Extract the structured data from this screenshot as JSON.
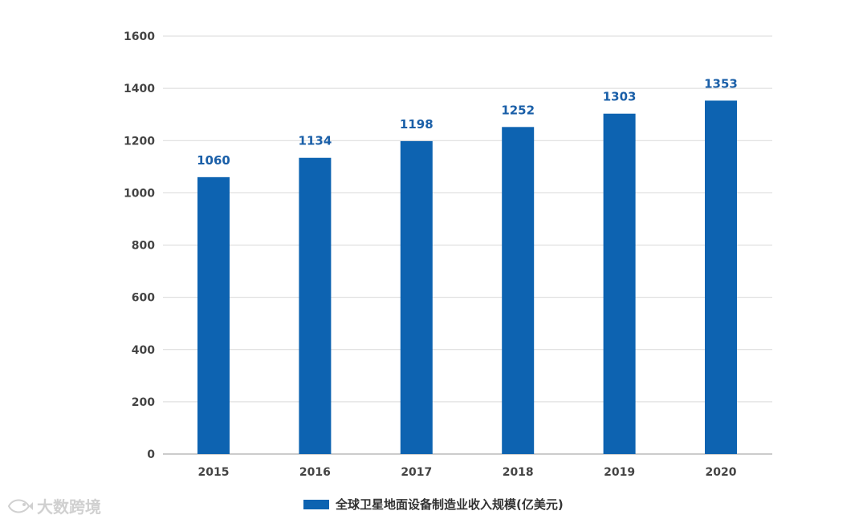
{
  "colors": {
    "bar": "#0d63b1",
    "grid": "#d9d9d9",
    "axis": "#999999",
    "label": "#1a5fa8"
  },
  "watermark": {
    "icon": "fish-logo-icon",
    "text": "大数跨境"
  },
  "chart_data": {
    "type": "bar",
    "categories": [
      "2015",
      "2016",
      "2017",
      "2018",
      "2019",
      "2020"
    ],
    "series": [
      {
        "name": "全球卫星地面设备制造业收入规模(亿美元)",
        "values": [
          1060,
          1134,
          1198,
          1252,
          1303,
          1353
        ]
      }
    ],
    "data_labels": [
      "1060",
      "1134",
      "1198",
      "1252",
      "1303",
      "1353"
    ],
    "y_ticks": [
      "0",
      "200",
      "400",
      "600",
      "800",
      "1000",
      "1200",
      "1400",
      "1600"
    ],
    "ylim": [
      0,
      1600
    ],
    "grid": true,
    "legend_position": "bottom-center",
    "title": "",
    "xlabel": "",
    "ylabel": ""
  }
}
